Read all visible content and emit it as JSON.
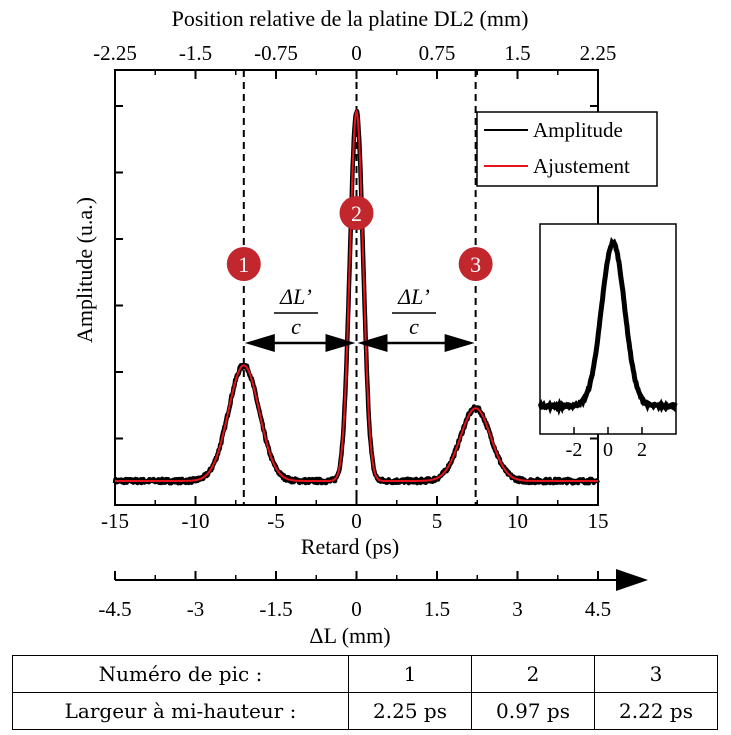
{
  "chart_data": {
    "type": "line",
    "title": "Position relative de la platine DL2 (mm)",
    "xlabel": "Retard (ps)",
    "ylabel": "Amplitude (u.a.)",
    "xlim": [
      -15,
      15
    ],
    "ylim": [
      0,
      1
    ],
    "x_ticks": [
      "-15",
      "-10",
      "-5",
      "0",
      "5",
      "10",
      "15"
    ],
    "top_axis": {
      "label": "Position relative de la platine DL2 (mm)",
      "ticks": [
        "-2.25",
        "-1.5",
        "-0.75",
        "0",
        "0.75",
        "1.5",
        "2.25"
      ]
    },
    "bottom_axis": {
      "label": "ΔL (mm)",
      "ticks": [
        "-4.5",
        "-3",
        "-1.5",
        "0",
        "1.5",
        "3",
        "4.5"
      ]
    },
    "series": [
      {
        "name": "Amplitude",
        "color": "#000000"
      },
      {
        "name": "Ajustement",
        "color": "#e8141c"
      }
    ],
    "peaks": [
      {
        "label": "1",
        "center": -7.0,
        "amplitude": 0.31,
        "fwhm": 2.25
      },
      {
        "label": "2",
        "center": 0.0,
        "amplitude": 0.99,
        "fwhm": 0.97
      },
      {
        "label": "3",
        "center": 7.4,
        "amplitude": 0.195,
        "fwhm": 2.22
      }
    ],
    "baseline": 0.0,
    "annotations": {
      "fraction_numerator": "ΔL’",
      "fraction_denominator": "c"
    },
    "inset": {
      "x_ticks": [
        "-2",
        "0",
        "2"
      ],
      "xlim": [
        -4,
        4
      ],
      "peak_center": 0.3,
      "fwhm": 1.6
    },
    "grid": false,
    "legend_position": "top-right",
    "marker_color": "#c1272d"
  },
  "table": {
    "row1": [
      "Numéro de pic :",
      "1",
      "2",
      "3"
    ],
    "row2": [
      "Largeur à mi-hauteur :",
      "2.25 ps",
      "0.97 ps",
      "2.22 ps"
    ]
  }
}
